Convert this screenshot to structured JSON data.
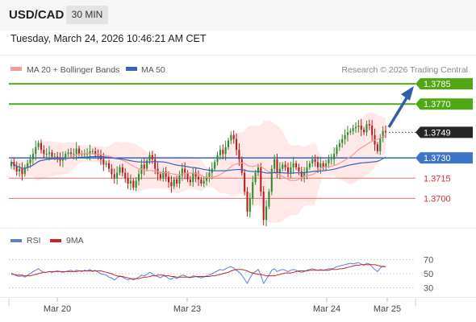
{
  "header": {
    "symbol": "USD/CAD",
    "timeframe": "30 MIN"
  },
  "date_line": "Tuesday, March 24, 2026 10:46:21 AM CET",
  "legend": {
    "ma20": "MA 20 + Bollinger Bands",
    "ma50": "MA 50",
    "credit": "Research © 2026 Trading Central"
  },
  "rsi_legend": {
    "rsi": "RSI",
    "ma9": "9MA"
  },
  "colors": {
    "resistance": "#4fa814",
    "current": "#262626",
    "pivot": "#3d73c9",
    "support": "#f27c7c",
    "band_fill": "#fde0e0",
    "ma20": "#f59a9a",
    "ma50": "#3c63b3",
    "up": "#2d8c2d",
    "down": "#b41f1f",
    "arrow": "#2f5fa8",
    "rsi": "#5b7fd4",
    "rsi_ma": "#d42020"
  },
  "chart_data": [
    {
      "type": "candlestick",
      "x_tick_labels": [
        "Mar 20",
        "Mar 23",
        "Mar 24",
        "Mar 25"
      ],
      "y_range": [
        1.3668,
        1.3797
      ],
      "levels": [
        {
          "label": "1.3785",
          "value": 1.3785,
          "kind": "resistance"
        },
        {
          "label": "1.3770",
          "value": 1.377,
          "kind": "resistance"
        },
        {
          "label": "1.3749",
          "value": 1.3749,
          "kind": "current"
        },
        {
          "label": "1.3730",
          "value": 1.373,
          "kind": "pivot"
        },
        {
          "label": "1.3715",
          "value": 1.3715,
          "kind": "support"
        },
        {
          "label": "1.3700",
          "value": 1.37,
          "kind": "support"
        }
      ],
      "close": [
        1.3727,
        1.3724,
        1.372,
        1.3722,
        1.3718,
        1.3723,
        1.3726,
        1.3729,
        1.3733,
        1.3738,
        1.3741,
        1.3736,
        1.3733,
        1.3733,
        1.3734,
        1.3731,
        1.3731,
        1.373,
        1.3728,
        1.373,
        1.3733,
        1.3734,
        1.3733,
        1.3733,
        1.3737,
        1.3733,
        1.3733,
        1.3733,
        1.3733,
        1.3735,
        1.3735,
        1.3733,
        1.3732,
        1.3729,
        1.3725,
        1.3726,
        1.3722,
        1.3718,
        1.3715,
        1.3719,
        1.3723,
        1.3719,
        1.3715,
        1.3711,
        1.3713,
        1.3708,
        1.3713,
        1.3718,
        1.3725,
        1.3722,
        1.3728,
        1.3732,
        1.3729,
        1.3722,
        1.3718,
        1.3715,
        1.372,
        1.3716,
        1.3712,
        1.3709,
        1.3714,
        1.3711,
        1.3717,
        1.3722,
        1.3719,
        1.3714,
        1.3712,
        1.3719,
        1.3716,
        1.3714,
        1.3711,
        1.3713,
        1.3716,
        1.3719,
        1.3722,
        1.3727,
        1.3732,
        1.3736,
        1.3733,
        1.3738,
        1.3743,
        1.3747,
        1.3744,
        1.3736,
        1.3729,
        1.3719,
        1.3705,
        1.369,
        1.37,
        1.3712,
        1.3719,
        1.3723,
        1.3705,
        1.3684,
        1.3694,
        1.3705,
        1.3722,
        1.3729,
        1.3719,
        1.3722,
        1.3725,
        1.3723,
        1.3719,
        1.3723,
        1.3726,
        1.3723,
        1.372,
        1.3716,
        1.3719,
        1.3723,
        1.3726,
        1.3729,
        1.3727,
        1.3723,
        1.3726,
        1.3723,
        1.3726,
        1.3729,
        1.3729,
        1.3733,
        1.3738,
        1.3741,
        1.3744,
        1.3747,
        1.3749,
        1.375,
        1.3752,
        1.3753,
        1.3754,
        1.3751,
        1.3749,
        1.3755,
        1.3754,
        1.3747,
        1.374,
        1.3735,
        1.3745,
        1.375,
        1.3749
      ],
      "rsi_axis_ticks": [
        70,
        50,
        30
      ],
      "rsi_range": [
        20,
        80
      ],
      "rsi": [
        51,
        49,
        47,
        46,
        47,
        45,
        48,
        50,
        53,
        55,
        57,
        54,
        52,
        52,
        53,
        52,
        53,
        54,
        53,
        52,
        53,
        54,
        55,
        53,
        55,
        54,
        53,
        55,
        54,
        56,
        53,
        55,
        52,
        50,
        49,
        48,
        45,
        44,
        41,
        44,
        47,
        45,
        43,
        41,
        43,
        41,
        43,
        45,
        48,
        47,
        49,
        52,
        50,
        47,
        46,
        44,
        47,
        46,
        43,
        42,
        45,
        43,
        46,
        48,
        47,
        45,
        44,
        47,
        46,
        45,
        44,
        45,
        47,
        48,
        50,
        52,
        54,
        56,
        55,
        57,
        59,
        60,
        58,
        55,
        52,
        48,
        42,
        36,
        44,
        50,
        53,
        56,
        48,
        36,
        42,
        48,
        55,
        57,
        53,
        55,
        56,
        55,
        53,
        55,
        56,
        55,
        53,
        52,
        53,
        55,
        56,
        57,
        56,
        55,
        56,
        55,
        56,
        57,
        57,
        58,
        60,
        61,
        62,
        63,
        64,
        65,
        64,
        65,
        66,
        64,
        62,
        65,
        64,
        60,
        56,
        53,
        58,
        61,
        60
      ],
      "rsi_ma": [
        49,
        49,
        48,
        48,
        48,
        47,
        47,
        47,
        48,
        49,
        50,
        51,
        52,
        52,
        53,
        53,
        53,
        53,
        53,
        53,
        53,
        53,
        53,
        53,
        53,
        54,
        54,
        54,
        54,
        54,
        54,
        54,
        54,
        54,
        53,
        52,
        51,
        50,
        48,
        47,
        46,
        46,
        45,
        44,
        43,
        43,
        43,
        43,
        44,
        45,
        45,
        46,
        47,
        47,
        48,
        48,
        48,
        47,
        47,
        46,
        46,
        45,
        45,
        45,
        45,
        45,
        45,
        45,
        46,
        46,
        46,
        46,
        46,
        46,
        47,
        47,
        48,
        49,
        50,
        51,
        52,
        54,
        55,
        56,
        56,
        56,
        55,
        54,
        52,
        51,
        50,
        49,
        49,
        48,
        47,
        47,
        47,
        47,
        48,
        49,
        50,
        51,
        51,
        51,
        52,
        53,
        54,
        54,
        54,
        54,
        55,
        55,
        55,
        55,
        55,
        55,
        55,
        55,
        56,
        56,
        56,
        57,
        57,
        58,
        59,
        60,
        61,
        62,
        62,
        63,
        63,
        63,
        63,
        63,
        63,
        62,
        61,
        60,
        60
      ]
    }
  ]
}
